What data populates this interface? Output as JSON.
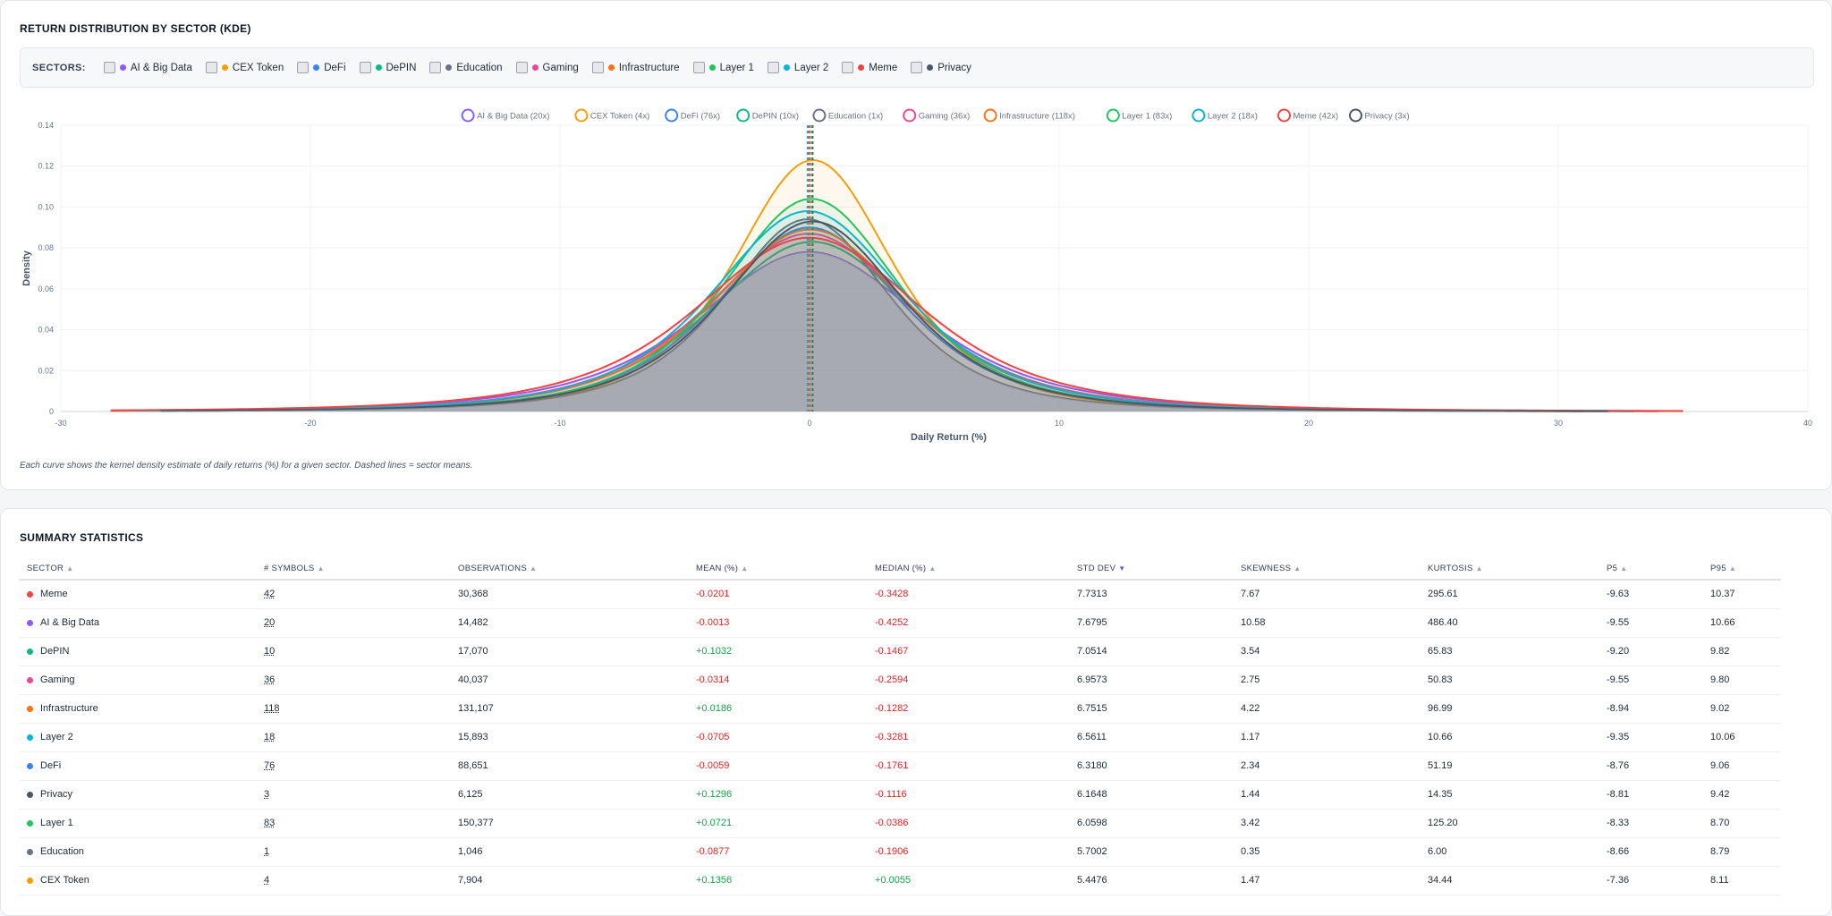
{
  "chart_card": {
    "title": "RETURN DISTRIBUTION BY SECTOR (KDE)",
    "sectors_label": "SECTORS:",
    "caption": "Each curve shows the kernel density estimate of daily returns (%) for a given sector. Dashed lines = sector means."
  },
  "sectors": [
    {
      "name": "AI & Big Data",
      "color": "#8b5cf6"
    },
    {
      "name": "CEX Token",
      "color": "#f59e0b"
    },
    {
      "name": "DeFi",
      "color": "#3b82f6"
    },
    {
      "name": "DePIN",
      "color": "#10b981"
    },
    {
      "name": "Education",
      "color": "#6b7280"
    },
    {
      "name": "Gaming",
      "color": "#ec4899"
    },
    {
      "name": "Infrastructure",
      "color": "#f97316"
    },
    {
      "name": "Layer 1",
      "color": "#22c55e"
    },
    {
      "name": "Layer 2",
      "color": "#06b6d4"
    },
    {
      "name": "Meme",
      "color": "#ef4444"
    },
    {
      "name": "Privacy",
      "color": "#4b5563"
    }
  ],
  "chart_data": {
    "type": "line",
    "xlabel": "Daily Return (%)",
    "ylabel": "Density",
    "xlim": [
      -30,
      40
    ],
    "ylim": [
      0,
      0.14
    ],
    "xticks": [
      -30,
      -20,
      -10,
      0,
      10,
      20,
      30,
      40
    ],
    "xtick_labels": [
      "-30",
      "-20",
      "-10",
      "0",
      "10",
      "20",
      "30",
      "40"
    ],
    "yticks": [
      0,
      0.02,
      0.04,
      0.06,
      0.08,
      0.1,
      0.12,
      0.14
    ],
    "ytick_labels": [
      "0",
      "0.02",
      "0.04",
      "0.06",
      "0.08",
      "0.10",
      "0.12",
      "0.14"
    ],
    "legend_position": "top-center",
    "series": [
      {
        "name": "AI & Big Data",
        "legend": "AI & Big Data (20x)",
        "color": "#8b5cf6",
        "peak": 0.078,
        "mean": -0.0013,
        "std": 7.6795,
        "range": [
          -28,
          35
        ]
      },
      {
        "name": "CEX Token",
        "legend": "CEX Token (4x)",
        "color": "#f59e0b",
        "peak": 0.123,
        "mean": 0.1356,
        "std": 5.4476,
        "range": [
          -26,
          33
        ]
      },
      {
        "name": "DeFi",
        "legend": "DeFi (76x)",
        "color": "#3b82f6",
        "peak": 0.09,
        "mean": -0.0059,
        "std": 6.318,
        "range": [
          -28,
          34
        ]
      },
      {
        "name": "DePIN",
        "legend": "DePIN (10x)",
        "color": "#10b981",
        "peak": 0.083,
        "mean": 0.1032,
        "std": 7.0514,
        "range": [
          -27,
          33
        ]
      },
      {
        "name": "Education",
        "legend": "Education (1x)",
        "color": "#6b7280",
        "peak": 0.094,
        "mean": -0.0877,
        "std": 5.7002,
        "range": [
          -25,
          31
        ]
      },
      {
        "name": "Gaming",
        "legend": "Gaming (36x)",
        "color": "#ec4899",
        "peak": 0.087,
        "mean": -0.0314,
        "std": 6.9573,
        "range": [
          -28,
          34
        ]
      },
      {
        "name": "Infrastructure",
        "legend": "Infrastructure (118x)",
        "color": "#f97316",
        "peak": 0.089,
        "mean": 0.0186,
        "std": 6.7515,
        "range": [
          -28,
          35
        ]
      },
      {
        "name": "Layer 1",
        "legend": "Layer 1 (83x)",
        "color": "#22c55e",
        "peak": 0.104,
        "mean": 0.0721,
        "std": 6.0598,
        "range": [
          -27,
          33
        ]
      },
      {
        "name": "Layer 2",
        "legend": "Layer 2 (18x)",
        "color": "#06b6d4",
        "peak": 0.098,
        "mean": -0.0705,
        "std": 6.5611,
        "range": [
          -27,
          33
        ]
      },
      {
        "name": "Meme",
        "legend": "Meme (42x)",
        "color": "#ef4444",
        "peak": 0.085,
        "mean": -0.0201,
        "std": 7.7313,
        "range": [
          -28,
          35
        ]
      },
      {
        "name": "Privacy",
        "legend": "Privacy (3x)",
        "color": "#4b5563",
        "peak": 0.093,
        "mean": 0.1296,
        "std": 6.1648,
        "range": [
          -26,
          32
        ]
      }
    ]
  },
  "stats_card": {
    "title": "SUMMARY STATISTICS",
    "headers": [
      "SECTOR",
      "# SYMBOLS",
      "OBSERVATIONS",
      "MEAN (%)",
      "MEDIAN (%)",
      "STD DEV",
      "SKEWNESS",
      "KURTOSIS",
      "P5",
      "P95"
    ],
    "sort_arrows": [
      "▲",
      "▲",
      "▲",
      "▲",
      "▲",
      "▼",
      "▲",
      "▲",
      "▲",
      "▲"
    ],
    "rows": [
      {
        "sector": "Meme",
        "color": "#ef4444",
        "symbols": "42",
        "obs": "30,368",
        "mean": "-0.0201",
        "median": "-0.3428",
        "std": "7.7313",
        "skew": "7.67",
        "kurt": "295.61",
        "p5": "-9.63",
        "p95": "10.37"
      },
      {
        "sector": "AI & Big Data",
        "color": "#8b5cf6",
        "symbols": "20",
        "obs": "14,482",
        "mean": "-0.0013",
        "median": "-0.4252",
        "std": "7.6795",
        "skew": "10.58",
        "kurt": "486.40",
        "p5": "-9.55",
        "p95": "10.66"
      },
      {
        "sector": "DePIN",
        "color": "#10b981",
        "symbols": "10",
        "obs": "17,070",
        "mean": "+0.1032",
        "median": "-0.1467",
        "std": "7.0514",
        "skew": "3.54",
        "kurt": "65.83",
        "p5": "-9.20",
        "p95": "9.82"
      },
      {
        "sector": "Gaming",
        "color": "#ec4899",
        "symbols": "36",
        "obs": "40,037",
        "mean": "-0.0314",
        "median": "-0.2594",
        "std": "6.9573",
        "skew": "2.75",
        "kurt": "50.83",
        "p5": "-9.55",
        "p95": "9.80"
      },
      {
        "sector": "Infrastructure",
        "color": "#f97316",
        "symbols": "118",
        "obs": "131,107",
        "mean": "+0.0186",
        "median": "-0.1282",
        "std": "6.7515",
        "skew": "4.22",
        "kurt": "96.99",
        "p5": "-8.94",
        "p95": "9.02"
      },
      {
        "sector": "Layer 2",
        "color": "#06b6d4",
        "symbols": "18",
        "obs": "15,893",
        "mean": "-0.0705",
        "median": "-0.3281",
        "std": "6.5611",
        "skew": "1.17",
        "kurt": "10.66",
        "p5": "-9.35",
        "p95": "10.06"
      },
      {
        "sector": "DeFi",
        "color": "#3b82f6",
        "symbols": "76",
        "obs": "88,651",
        "mean": "-0.0059",
        "median": "-0.1761",
        "std": "6.3180",
        "skew": "2.34",
        "kurt": "51.19",
        "p5": "-8.76",
        "p95": "9.06"
      },
      {
        "sector": "Privacy",
        "color": "#4b5563",
        "symbols": "3",
        "obs": "6,125",
        "mean": "+0.1296",
        "median": "-0.1116",
        "std": "6.1648",
        "skew": "1.44",
        "kurt": "14.35",
        "p5": "-8.81",
        "p95": "9.42"
      },
      {
        "sector": "Layer 1",
        "color": "#22c55e",
        "symbols": "83",
        "obs": "150,377",
        "mean": "+0.0721",
        "median": "-0.0386",
        "std": "6.0598",
        "skew": "3.42",
        "kurt": "125.20",
        "p5": "-8.33",
        "p95": "8.70"
      },
      {
        "sector": "Education",
        "color": "#6b7280",
        "symbols": "1",
        "obs": "1,046",
        "mean": "-0.0877",
        "median": "-0.1906",
        "std": "5.7002",
        "skew": "0.35",
        "kurt": "6.00",
        "p5": "-8.66",
        "p95": "8.79"
      },
      {
        "sector": "CEX Token",
        "color": "#f59e0b",
        "symbols": "4",
        "obs": "7,904",
        "mean": "+0.1356",
        "median": "+0.0055",
        "std": "5.4476",
        "skew": "1.47",
        "kurt": "34.44",
        "p5": "-7.36",
        "p95": "8.11"
      }
    ]
  }
}
